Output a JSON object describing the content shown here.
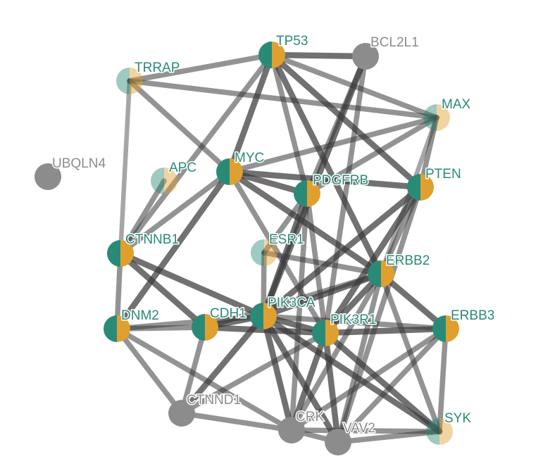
{
  "colors": {
    "teal": "#2a8a78",
    "gold": "#e0a030",
    "gray": "#8c8c8c",
    "edge": "#3a3a3a",
    "label_colored": "#2a8a78",
    "label_gray": "#8c8c8c"
  },
  "nodes": [
    {
      "id": "TP53",
      "label": "TP53",
      "style": "full"
    },
    {
      "id": "BCL2L1",
      "label": "BCL2L1",
      "style": "gray"
    },
    {
      "id": "TRRAP",
      "label": "TRRAP",
      "style": "light"
    },
    {
      "id": "MAX",
      "label": "MAX",
      "style": "light"
    },
    {
      "id": "UBQLN4",
      "label": "UBQLN4",
      "style": "gray"
    },
    {
      "id": "APC",
      "label": "APC",
      "style": "light"
    },
    {
      "id": "MYC",
      "label": "MYC",
      "style": "full"
    },
    {
      "id": "PDGFRB",
      "label": "PDGFRB",
      "style": "full"
    },
    {
      "id": "PTEN",
      "label": "PTEN",
      "style": "full"
    },
    {
      "id": "CTNNB1",
      "label": "CTNNB1",
      "style": "full"
    },
    {
      "id": "ESR1",
      "label": "ESR1",
      "style": "light"
    },
    {
      "id": "ERBB2",
      "label": "ERBB2",
      "style": "full"
    },
    {
      "id": "DNM2",
      "label": "DNM2",
      "style": "full"
    },
    {
      "id": "CDH1",
      "label": "CDH1",
      "style": "full"
    },
    {
      "id": "PIK3CA",
      "label": "PIK3CA",
      "style": "full"
    },
    {
      "id": "PIK3R1",
      "label": "PIK3R1",
      "style": "full"
    },
    {
      "id": "ERBB3",
      "label": "ERBB3",
      "style": "full"
    },
    {
      "id": "CTNND1",
      "label": "CTNND1",
      "style": "gray"
    },
    {
      "id": "CRK",
      "label": "CRK",
      "style": "gray"
    },
    {
      "id": "VAV2",
      "label": "VAV2",
      "style": "gray"
    },
    {
      "id": "SYK",
      "label": "SYK",
      "style": "light"
    }
  ],
  "edges": [
    {
      "source": "TP53",
      "target": "BCL2L1",
      "weight": 3
    },
    {
      "source": "TP53",
      "target": "TRRAP",
      "weight": 2
    },
    {
      "source": "TP53",
      "target": "MAX",
      "weight": 2
    },
    {
      "source": "TP53",
      "target": "MYC",
      "weight": 3
    },
    {
      "source": "TP53",
      "target": "PTEN",
      "weight": 3
    },
    {
      "source": "TP53",
      "target": "CTNNB1",
      "weight": 2
    },
    {
      "source": "TP53",
      "target": "PDGFRB",
      "weight": 2
    },
    {
      "source": "TP53",
      "target": "ERBB2",
      "weight": 3
    },
    {
      "source": "BCL2L1",
      "target": "PDGFRB",
      "weight": 2
    },
    {
      "source": "BCL2L1",
      "target": "PIK3CA",
      "weight": 3
    },
    {
      "source": "BCL2L1",
      "target": "PIK3R1",
      "weight": 2
    },
    {
      "source": "TRRAP",
      "target": "MAX",
      "weight": 2
    },
    {
      "source": "TRRAP",
      "target": "MYC",
      "weight": 2
    },
    {
      "source": "TRRAP",
      "target": "CTNNB1",
      "weight": 1
    },
    {
      "source": "MAX",
      "target": "MYC",
      "weight": 2
    },
    {
      "source": "MAX",
      "target": "PDGFRB",
      "weight": 2
    },
    {
      "source": "MAX",
      "target": "PTEN",
      "weight": 2
    },
    {
      "source": "MAX",
      "target": "ERBB2",
      "weight": 1
    },
    {
      "source": "APC",
      "target": "CTNNB1",
      "weight": 2
    },
    {
      "source": "MYC",
      "target": "CTNNB1",
      "weight": 2
    },
    {
      "source": "MYC",
      "target": "PDGFRB",
      "weight": 3
    },
    {
      "source": "MYC",
      "target": "PTEN",
      "weight": 3
    },
    {
      "source": "MYC",
      "target": "ERBB2",
      "weight": 3
    },
    {
      "source": "MYC",
      "target": "PIK3R1",
      "weight": 2
    },
    {
      "source": "MYC",
      "target": "DNM2",
      "weight": 3
    },
    {
      "source": "PDGFRB",
      "target": "PIK3CA",
      "weight": 3
    },
    {
      "source": "PDGFRB",
      "target": "PIK3R1",
      "weight": 2
    },
    {
      "source": "PDGFRB",
      "target": "CRK",
      "weight": 2
    },
    {
      "source": "PDGFRB",
      "target": "ESR1",
      "weight": 2
    },
    {
      "source": "PTEN",
      "target": "PIK3CA",
      "weight": 3
    },
    {
      "source": "PTEN",
      "target": "PIK3R1",
      "weight": 3
    },
    {
      "source": "PTEN",
      "target": "ERBB2",
      "weight": 2
    },
    {
      "source": "PTEN",
      "target": "VAV2",
      "weight": 2
    },
    {
      "source": "CTNNB1",
      "target": "DNM2",
      "weight": 2
    },
    {
      "source": "CTNNB1",
      "target": "CDH1",
      "weight": 3
    },
    {
      "source": "CTNNB1",
      "target": "PIK3CA",
      "weight": 3
    },
    {
      "source": "ESR1",
      "target": "PIK3CA",
      "weight": 2
    },
    {
      "source": "ESR1",
      "target": "ERBB2",
      "weight": 2
    },
    {
      "source": "ERBB2",
      "target": "PIK3CA",
      "weight": 3
    },
    {
      "source": "ERBB2",
      "target": "PIK3R1",
      "weight": 3
    },
    {
      "source": "ERBB2",
      "target": "ERBB3",
      "weight": 3
    },
    {
      "source": "ERBB2",
      "target": "SYK",
      "weight": 2
    },
    {
      "source": "ERBB2",
      "target": "CRK",
      "weight": 2
    },
    {
      "source": "ERBB2",
      "target": "VAV2",
      "weight": 2
    },
    {
      "source": "ERBB2",
      "target": "CDH1",
      "weight": 2
    },
    {
      "source": "DNM2",
      "target": "CDH1",
      "weight": 2
    },
    {
      "source": "DNM2",
      "target": "CTNND1",
      "weight": 2
    },
    {
      "source": "DNM2",
      "target": "CRK",
      "weight": 2
    },
    {
      "source": "DNM2",
      "target": "PIK3CA",
      "weight": 2
    },
    {
      "source": "CDH1",
      "target": "PIK3CA",
      "weight": 3
    },
    {
      "source": "CDH1",
      "target": "PIK3R1",
      "weight": 3
    },
    {
      "source": "CDH1",
      "target": "CTNND1",
      "weight": 2
    },
    {
      "source": "PIK3CA",
      "target": "PIK3R1",
      "weight": 3
    },
    {
      "source": "PIK3CA",
      "target": "ERBB3",
      "weight": 2
    },
    {
      "source": "PIK3CA",
      "target": "CTNND1",
      "weight": 3
    },
    {
      "source": "PIK3CA",
      "target": "CRK",
      "weight": 3
    },
    {
      "source": "PIK3CA",
      "target": "VAV2",
      "weight": 3
    },
    {
      "source": "PIK3CA",
      "target": "SYK",
      "weight": 3
    },
    {
      "source": "PIK3R1",
      "target": "ERBB3",
      "weight": 3
    },
    {
      "source": "PIK3R1",
      "target": "CTNND1",
      "weight": 2
    },
    {
      "source": "PIK3R1",
      "target": "CRK",
      "weight": 3
    },
    {
      "source": "PIK3R1",
      "target": "VAV2",
      "weight": 3
    },
    {
      "source": "PIK3R1",
      "target": "SYK",
      "weight": 3
    },
    {
      "source": "ERBB3",
      "target": "SYK",
      "weight": 2
    },
    {
      "source": "ERBB3",
      "target": "VAV2",
      "weight": 2
    },
    {
      "source": "ERBB3",
      "target": "CRK",
      "weight": 2
    },
    {
      "source": "CTNND1",
      "target": "CRK",
      "weight": 2
    },
    {
      "source": "CRK",
      "target": "VAV2",
      "weight": 2
    },
    {
      "source": "CRK",
      "target": "SYK",
      "weight": 2
    },
    {
      "source": "VAV2",
      "target": "SYK",
      "weight": 2
    }
  ]
}
